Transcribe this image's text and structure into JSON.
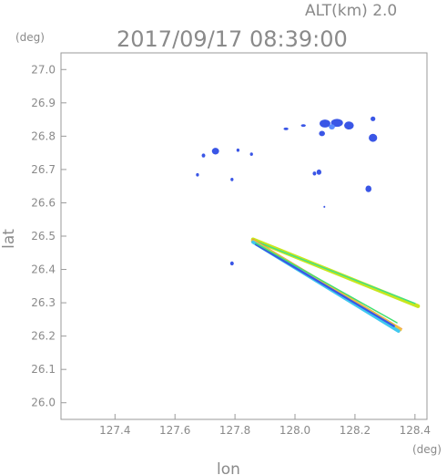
{
  "alt_label": "ALT(km)  2.0",
  "timestamp": "2017/09/17 08:39:00",
  "chart_data": {
    "type": "scatter",
    "xlabel": "lon",
    "ylabel": "lat",
    "x_unit": "(deg)",
    "y_unit": "(deg)",
    "xlim": [
      127.22,
      128.44
    ],
    "ylim": [
      25.95,
      27.05
    ],
    "x_ticks": [
      "127.4",
      "127.6",
      "127.8",
      "128.0",
      "128.2",
      "128.4"
    ],
    "y_ticks": [
      "26.0",
      "26.1",
      "26.2",
      "26.3",
      "26.4",
      "26.5",
      "26.6",
      "26.7",
      "26.8",
      "26.9",
      "27.0"
    ],
    "grid": false,
    "echo_cells": [
      {
        "lon": 128.1,
        "lat": 26.838,
        "rx": 0.018,
        "ry": 0.012,
        "color": "#3a56e6"
      },
      {
        "lon": 128.14,
        "lat": 26.84,
        "rx": 0.02,
        "ry": 0.012,
        "color": "#3a56e6"
      },
      {
        "lon": 128.18,
        "lat": 26.832,
        "rx": 0.016,
        "ry": 0.012,
        "color": "#3a56e6"
      },
      {
        "lon": 128.123,
        "lat": 26.828,
        "rx": 0.01,
        "ry": 0.008,
        "color": "#5a8cff"
      },
      {
        "lon": 128.26,
        "lat": 26.795,
        "rx": 0.014,
        "ry": 0.012,
        "color": "#3a56e6"
      },
      {
        "lon": 128.26,
        "lat": 26.852,
        "rx": 0.008,
        "ry": 0.007,
        "color": "#3a56e6"
      },
      {
        "lon": 128.09,
        "lat": 26.808,
        "rx": 0.01,
        "ry": 0.008,
        "color": "#3a56e6"
      },
      {
        "lon": 128.245,
        "lat": 26.642,
        "rx": 0.01,
        "ry": 0.01,
        "color": "#3a56e6"
      },
      {
        "lon": 128.08,
        "lat": 26.692,
        "rx": 0.008,
        "ry": 0.008,
        "color": "#3a56e6"
      },
      {
        "lon": 128.065,
        "lat": 26.688,
        "rx": 0.006,
        "ry": 0.006,
        "color": "#3a56e6"
      },
      {
        "lon": 128.028,
        "lat": 26.832,
        "rx": 0.008,
        "ry": 0.004,
        "color": "#3a56e6"
      },
      {
        "lon": 127.97,
        "lat": 26.822,
        "rx": 0.008,
        "ry": 0.004,
        "color": "#3a56e6"
      },
      {
        "lon": 127.735,
        "lat": 26.755,
        "rx": 0.012,
        "ry": 0.01,
        "color": "#3a56e6"
      },
      {
        "lon": 127.695,
        "lat": 26.742,
        "rx": 0.006,
        "ry": 0.006,
        "color": "#3a56e6"
      },
      {
        "lon": 127.81,
        "lat": 26.758,
        "rx": 0.005,
        "ry": 0.005,
        "color": "#3a56e6"
      },
      {
        "lon": 127.855,
        "lat": 26.746,
        "rx": 0.005,
        "ry": 0.005,
        "color": "#3a56e6"
      },
      {
        "lon": 127.675,
        "lat": 26.684,
        "rx": 0.005,
        "ry": 0.005,
        "color": "#3a56e6"
      },
      {
        "lon": 127.79,
        "lat": 26.67,
        "rx": 0.005,
        "ry": 0.005,
        "color": "#3a56e6"
      },
      {
        "lon": 128.098,
        "lat": 26.588,
        "rx": 0.003,
        "ry": 0.003,
        "color": "#3a56e6"
      },
      {
        "lon": 127.79,
        "lat": 26.418,
        "rx": 0.006,
        "ry": 0.006,
        "color": "#3a56e6"
      }
    ],
    "streaks": [
      {
        "from": [
          127.86,
          26.49
        ],
        "to": [
          128.41,
          26.29
        ],
        "width": 0.012,
        "color": "#c8e61e"
      },
      {
        "from": [
          127.86,
          26.488
        ],
        "to": [
          128.4,
          26.298
        ],
        "width": 0.004,
        "color": "#3ee08a"
      },
      {
        "from": [
          127.86,
          26.49
        ],
        "to": [
          128.355,
          26.222
        ],
        "width": 0.004,
        "color": "#e83020"
      },
      {
        "from": [
          127.86,
          26.485
        ],
        "to": [
          128.35,
          26.22
        ],
        "width": 0.012,
        "color": "#f0c040"
      },
      {
        "from": [
          127.86,
          26.482
        ],
        "to": [
          128.345,
          26.215
        ],
        "width": 0.01,
        "color": "#40c8f0"
      },
      {
        "from": [
          127.87,
          26.475
        ],
        "to": [
          128.33,
          26.23
        ],
        "width": 0.006,
        "color": "#3a56e6"
      },
      {
        "from": [
          127.87,
          26.478
        ],
        "to": [
          128.34,
          26.24
        ],
        "width": 0.004,
        "color": "#40e070"
      }
    ]
  }
}
